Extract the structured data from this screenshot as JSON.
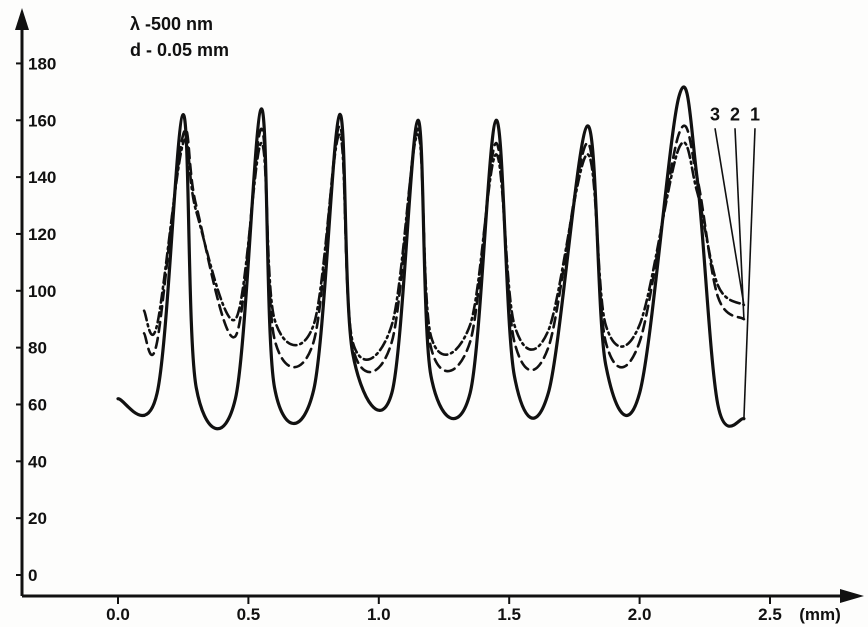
{
  "chart_data": {
    "type": "line",
    "orientation": "rotated-90-ccw",
    "xlabel": "",
    "xunit": "(mm)",
    "ylabel": "",
    "xlim": [
      0.0,
      2.7
    ],
    "ylim": [
      0,
      190
    ],
    "x_ticks": [
      "0.0",
      "0.5",
      "1.0",
      "1.5",
      "2.0",
      "2.5"
    ],
    "x_tick_values": [
      0.0,
      0.5,
      1.0,
      1.5,
      2.0,
      2.5
    ],
    "y_ticks": [
      "0",
      "20",
      "40",
      "60",
      "80",
      "100",
      "120",
      "140",
      "160",
      "180"
    ],
    "y_tick_values": [
      0,
      20,
      40,
      60,
      80,
      100,
      120,
      140,
      160,
      180
    ],
    "annotations": [
      "λ -500 nm",
      "d - 0.05 mm"
    ],
    "grid": false,
    "series": [
      {
        "name": "1",
        "style": "solid",
        "x": [
          0.0,
          0.15,
          0.25,
          0.3,
          0.45,
          0.55,
          0.6,
          0.75,
          0.85,
          0.9,
          1.05,
          1.15,
          1.2,
          1.35,
          1.45,
          1.52,
          1.65,
          1.8,
          1.87,
          2.0,
          2.15,
          2.22,
          2.3,
          2.4
        ],
        "y": [
          62,
          64,
          162,
          66,
          62,
          164,
          66,
          65,
          162,
          78,
          64,
          160,
          70,
          64,
          160,
          70,
          64,
          158,
          74,
          64,
          168,
          140,
          60,
          55
        ]
      },
      {
        "name": "2",
        "style": "dashed",
        "x": [
          0.1,
          0.15,
          0.25,
          0.3,
          0.45,
          0.55,
          0.6,
          0.75,
          0.85,
          0.9,
          1.05,
          1.15,
          1.2,
          1.35,
          1.45,
          1.52,
          1.65,
          1.8,
          1.87,
          2.0,
          2.15,
          2.22,
          2.3,
          2.4
        ],
        "y": [
          85,
          82,
          155,
          130,
          84,
          157,
          83,
          82,
          158,
          80,
          82,
          157,
          80,
          82,
          152,
          82,
          80,
          152,
          82,
          82,
          155,
          140,
          98,
          90
        ]
      },
      {
        "name": "3",
        "style": "dash-dot",
        "x": [
          0.1,
          0.15,
          0.25,
          0.3,
          0.45,
          0.55,
          0.6,
          0.75,
          0.85,
          0.9,
          1.05,
          1.15,
          1.2,
          1.35,
          1.45,
          1.52,
          1.65,
          1.8,
          1.87,
          2.0,
          2.15,
          2.22,
          2.3,
          2.4
        ],
        "y": [
          93,
          88,
          152,
          128,
          90,
          152,
          90,
          88,
          155,
          82,
          88,
          155,
          84,
          88,
          148,
          88,
          86,
          148,
          88,
          88,
          150,
          135,
          102,
          95
        ]
      }
    ]
  }
}
